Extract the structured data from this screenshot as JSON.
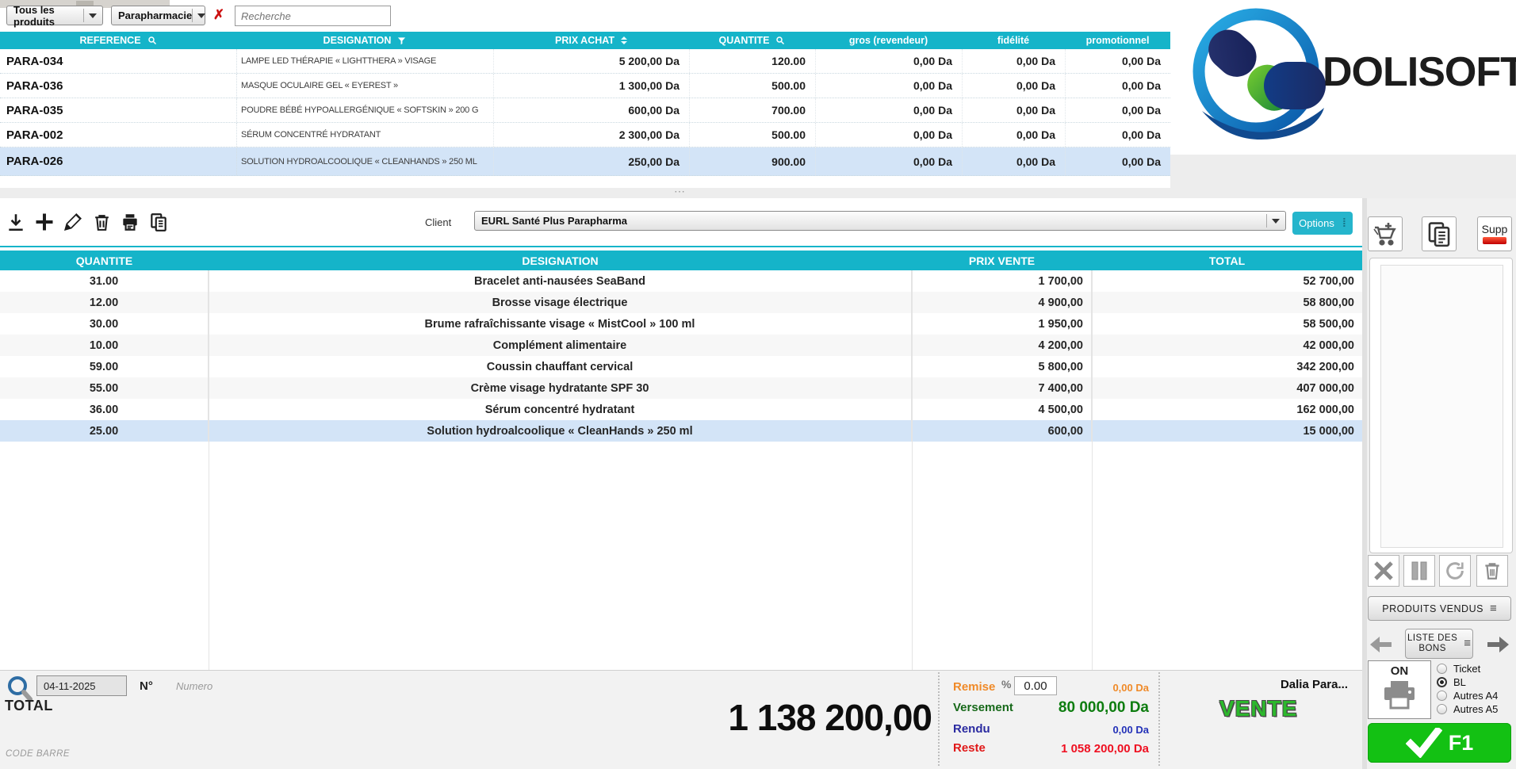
{
  "app": {
    "logo_text": "DOLISOFT",
    "accent": "#15b4c9"
  },
  "glyphs": {
    "clear": "✗",
    "ellipsis_v": "⁞",
    "menu": "≡",
    "grip": "⋯"
  },
  "top_bar": {
    "category_dropdown": "Tous les produits",
    "subcategory_dropdown": "Parapharmacie",
    "search_placeholder": "Recherche"
  },
  "product_table": {
    "columns": [
      "REFERENCE",
      "DESIGNATION",
      "PRIX ACHAT",
      "QUANTITE",
      "gros (revendeur)",
      "fidélité",
      "promotionnel"
    ],
    "rows": [
      [
        "PARA-034",
        "LAMPE LED THÉRAPIE « LIGHTTHERA » VISAGE",
        "5 200,00 Da",
        "120.00",
        "0,00 Da",
        "0,00 Da",
        "0,00 Da"
      ],
      [
        "PARA-036",
        "MASQUE OCULAIRE GEL « EYEREST »",
        "1 300,00 Da",
        "500.00",
        "0,00 Da",
        "0,00 Da",
        "0,00 Da"
      ],
      [
        "PARA-035",
        "POUDRE BÉBÉ HYPOALLERGÉNIQUE « SOFTSKIN » 200 G",
        "600,00 Da",
        "700.00",
        "0,00 Da",
        "0,00 Da",
        "0,00 Da"
      ],
      [
        "PARA-002",
        "SÉRUM CONCENTRÉ HYDRATANT",
        "2 300,00 Da",
        "500.00",
        "0,00 Da",
        "0,00 Da",
        "0,00 Da"
      ],
      [
        "PARA-026",
        "SOLUTION HYDROALCOOLIQUE « CLEANHANDS » 250 ML",
        "250,00 Da",
        "900.00",
        "0,00 Da",
        "0,00 Da",
        "0,00 Da"
      ]
    ],
    "selected_index": 4
  },
  "toolbar": {
    "client_label": "Client",
    "client_value": "EURL Santé Plus Parapharma",
    "options_label": "Options"
  },
  "sale_table": {
    "columns": [
      "QUANTITE",
      "DESIGNATION",
      "PRIX VENTE",
      "TOTAL"
    ],
    "rows": [
      [
        "31.00",
        "Bracelet anti-nausées SeaBand",
        "1 700,00",
        "52 700,00"
      ],
      [
        "12.00",
        "Brosse visage électrique",
        "4 900,00",
        "58 800,00"
      ],
      [
        "30.00",
        "Brume rafraîchissante visage « MistCool » 100 ml",
        "1 950,00",
        "58 500,00"
      ],
      [
        "10.00",
        "Complément alimentaire",
        "4 200,00",
        "42 000,00"
      ],
      [
        "59.00",
        "Coussin chauffant cervical",
        "5 800,00",
        "342 200,00"
      ],
      [
        "55.00",
        "Crème visage hydratante SPF 30",
        "7 400,00",
        "407 000,00"
      ],
      [
        "36.00",
        "Sérum concentré hydratant",
        "4 500,00",
        "162 000,00"
      ],
      [
        "25.00",
        "Solution hydroalcoolique « CleanHands » 250 ml",
        "600,00",
        "15 000,00"
      ]
    ],
    "selected_index": 7
  },
  "footer": {
    "date": "04-11-2025",
    "numero_label": "N°",
    "numero_placeholder": "Numero",
    "total_label": "TOTAL",
    "total_value": "1 138 200,00",
    "barcode_label": "CODE BARRE",
    "remise_label": "Remise",
    "remise_percent": "%",
    "remise_input": "0.00",
    "remise_value": "0,00 Da",
    "versement_label": "Versement",
    "versement_value": "80 000,00 Da",
    "rendu_label": "Rendu",
    "rendu_value": "0,00 Da",
    "reste_label": "Reste",
    "reste_value": "1 058 200,00 Da",
    "cashier": "Dalia Para...",
    "mode": "VENTE"
  },
  "right_panel": {
    "supp_label": "Supp",
    "produits_vendus_label": "PRODUITS VENDUS",
    "liste_bons_line1": "LISTE DES",
    "liste_bons_line2": "BONS",
    "printer_on_label": "ON",
    "print_options": [
      {
        "label": "Ticket",
        "selected": false
      },
      {
        "label": "BL",
        "selected": true
      },
      {
        "label": "Autres A4",
        "selected": false
      },
      {
        "label": "Autres A5",
        "selected": false
      }
    ],
    "validate_label": "F1"
  }
}
